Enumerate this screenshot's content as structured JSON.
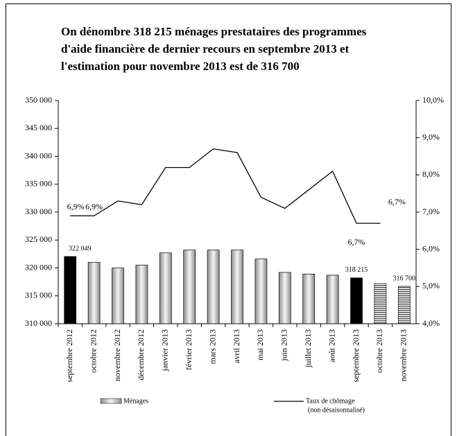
{
  "chart_data": {
    "type": "bar-line",
    "title_lines": [
      "On dénombre 318 215 ménages prestataires des programmes",
      "d'aide financière de dernier recours en septembre 2013 et",
      "l'estimation pour novembre 2013 est de 316 700"
    ],
    "categories": [
      "septembre 2012",
      "octobre 2012",
      "novembre 2012",
      "décembre 2012",
      "janvier 2013",
      "février 2013",
      "mars 2013",
      "avril 2013",
      "mai 2013",
      "juin 2013",
      "juillet 2013",
      "août 2013",
      "septembre 2013",
      "octobre 2013",
      "novembre 2013"
    ],
    "series": [
      {
        "name": "Ménages",
        "type": "bar",
        "color": "#c8c8c8",
        "bar_styles": [
          "solid",
          "gradient",
          "gradient",
          "gradient",
          "gradient",
          "gradient",
          "gradient",
          "gradient",
          "gradient",
          "gradient",
          "gradient",
          "gradient",
          "solid",
          "stripes",
          "stripes"
        ],
        "bar_colors": [
          "#000000",
          "#c8c8c8",
          "#c8c8c8",
          "#c8c8c8",
          "#c8c8c8",
          "#c8c8c8",
          "#c8c8c8",
          "#c8c8c8",
          "#c8c8c8",
          "#c8c8c8",
          "#c8c8c8",
          "#c8c8c8",
          "#000000",
          "#555555",
          "#555555"
        ],
        "values": [
          322049,
          321000,
          320000,
          320500,
          322700,
          323200,
          323200,
          323200,
          321600,
          319200,
          318900,
          318700,
          318215,
          317200,
          316700
        ],
        "value_labels": [
          "322 049",
          null,
          null,
          null,
          null,
          null,
          null,
          null,
          null,
          null,
          null,
          null,
          "318 215",
          null,
          "316 700"
        ]
      },
      {
        "name": "Taux de chômage",
        "name_note": "(non désaisonnalisé)",
        "type": "line",
        "axis": "y2",
        "color": "#000000",
        "values": [
          6.9,
          6.9,
          7.3,
          7.2,
          8.2,
          8.2,
          8.7,
          8.6,
          7.4,
          7.1,
          7.6,
          8.1,
          6.7,
          6.7,
          null
        ],
        "value_labels": [
          "6,9%",
          "6,9%",
          null,
          null,
          null,
          null,
          null,
          null,
          null,
          null,
          null,
          null,
          "6,7%",
          "6,7%",
          null
        ]
      }
    ],
    "ylim": [
      310000,
      350000
    ],
    "yticks": [
      {
        "value": 310000,
        "label": "310 000"
      },
      {
        "value": 315000,
        "label": "315 000"
      },
      {
        "value": 320000,
        "label": "320 000"
      },
      {
        "value": 325000,
        "label": "325 000"
      },
      {
        "value": 330000,
        "label": "330 000"
      },
      {
        "value": 335000,
        "label": "335 000"
      },
      {
        "value": 340000,
        "label": "340 000"
      },
      {
        "value": 345000,
        "label": "345 000"
      },
      {
        "value": 350000,
        "label": "350 000"
      }
    ],
    "y2lim": [
      4,
      10
    ],
    "y2ticks": [
      {
        "value": 4,
        "label": "4,0%"
      },
      {
        "value": 5,
        "label": "5,0%"
      },
      {
        "value": 6,
        "label": "6,0%"
      },
      {
        "value": 7,
        "label": "7,0%"
      },
      {
        "value": 8,
        "label": "8,0%"
      },
      {
        "value": 9,
        "label": "9,0%"
      },
      {
        "value": 10,
        "label": "10,0%"
      }
    ],
    "grid": false
  }
}
